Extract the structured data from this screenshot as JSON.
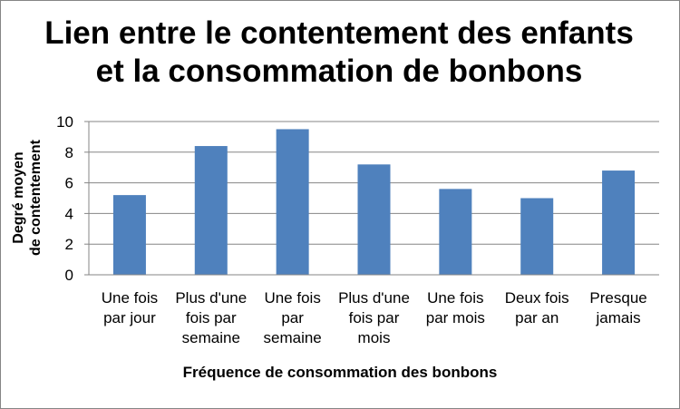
{
  "chart_data": {
    "type": "bar",
    "title_lines": [
      "Lien entre le contentement des enfants",
      "et la consommation de bonbons"
    ],
    "xlabel": "Fréquence de consommation des bonbons",
    "ylabel_lines": [
      "Degré moyen",
      "de contentement"
    ],
    "categories": [
      [
        "Une fois",
        "par jour"
      ],
      [
        "Plus d'une",
        "fois par",
        "semaine"
      ],
      [
        "Une fois",
        "par",
        "semaine"
      ],
      [
        "Plus d'une",
        "fois par",
        "mois"
      ],
      [
        "Une fois",
        "par mois"
      ],
      [
        "Deux fois",
        "par an"
      ],
      [
        "Presque",
        "jamais"
      ]
    ],
    "values": [
      5.2,
      8.4,
      9.5,
      7.2,
      5.6,
      5.0,
      6.8
    ],
    "ylim": [
      0,
      10
    ],
    "yticks": [
      0,
      2,
      4,
      6,
      8,
      10
    ],
    "grid": true,
    "legend": false,
    "bar_color": "#4f81bd",
    "grid_color": "#868686"
  }
}
